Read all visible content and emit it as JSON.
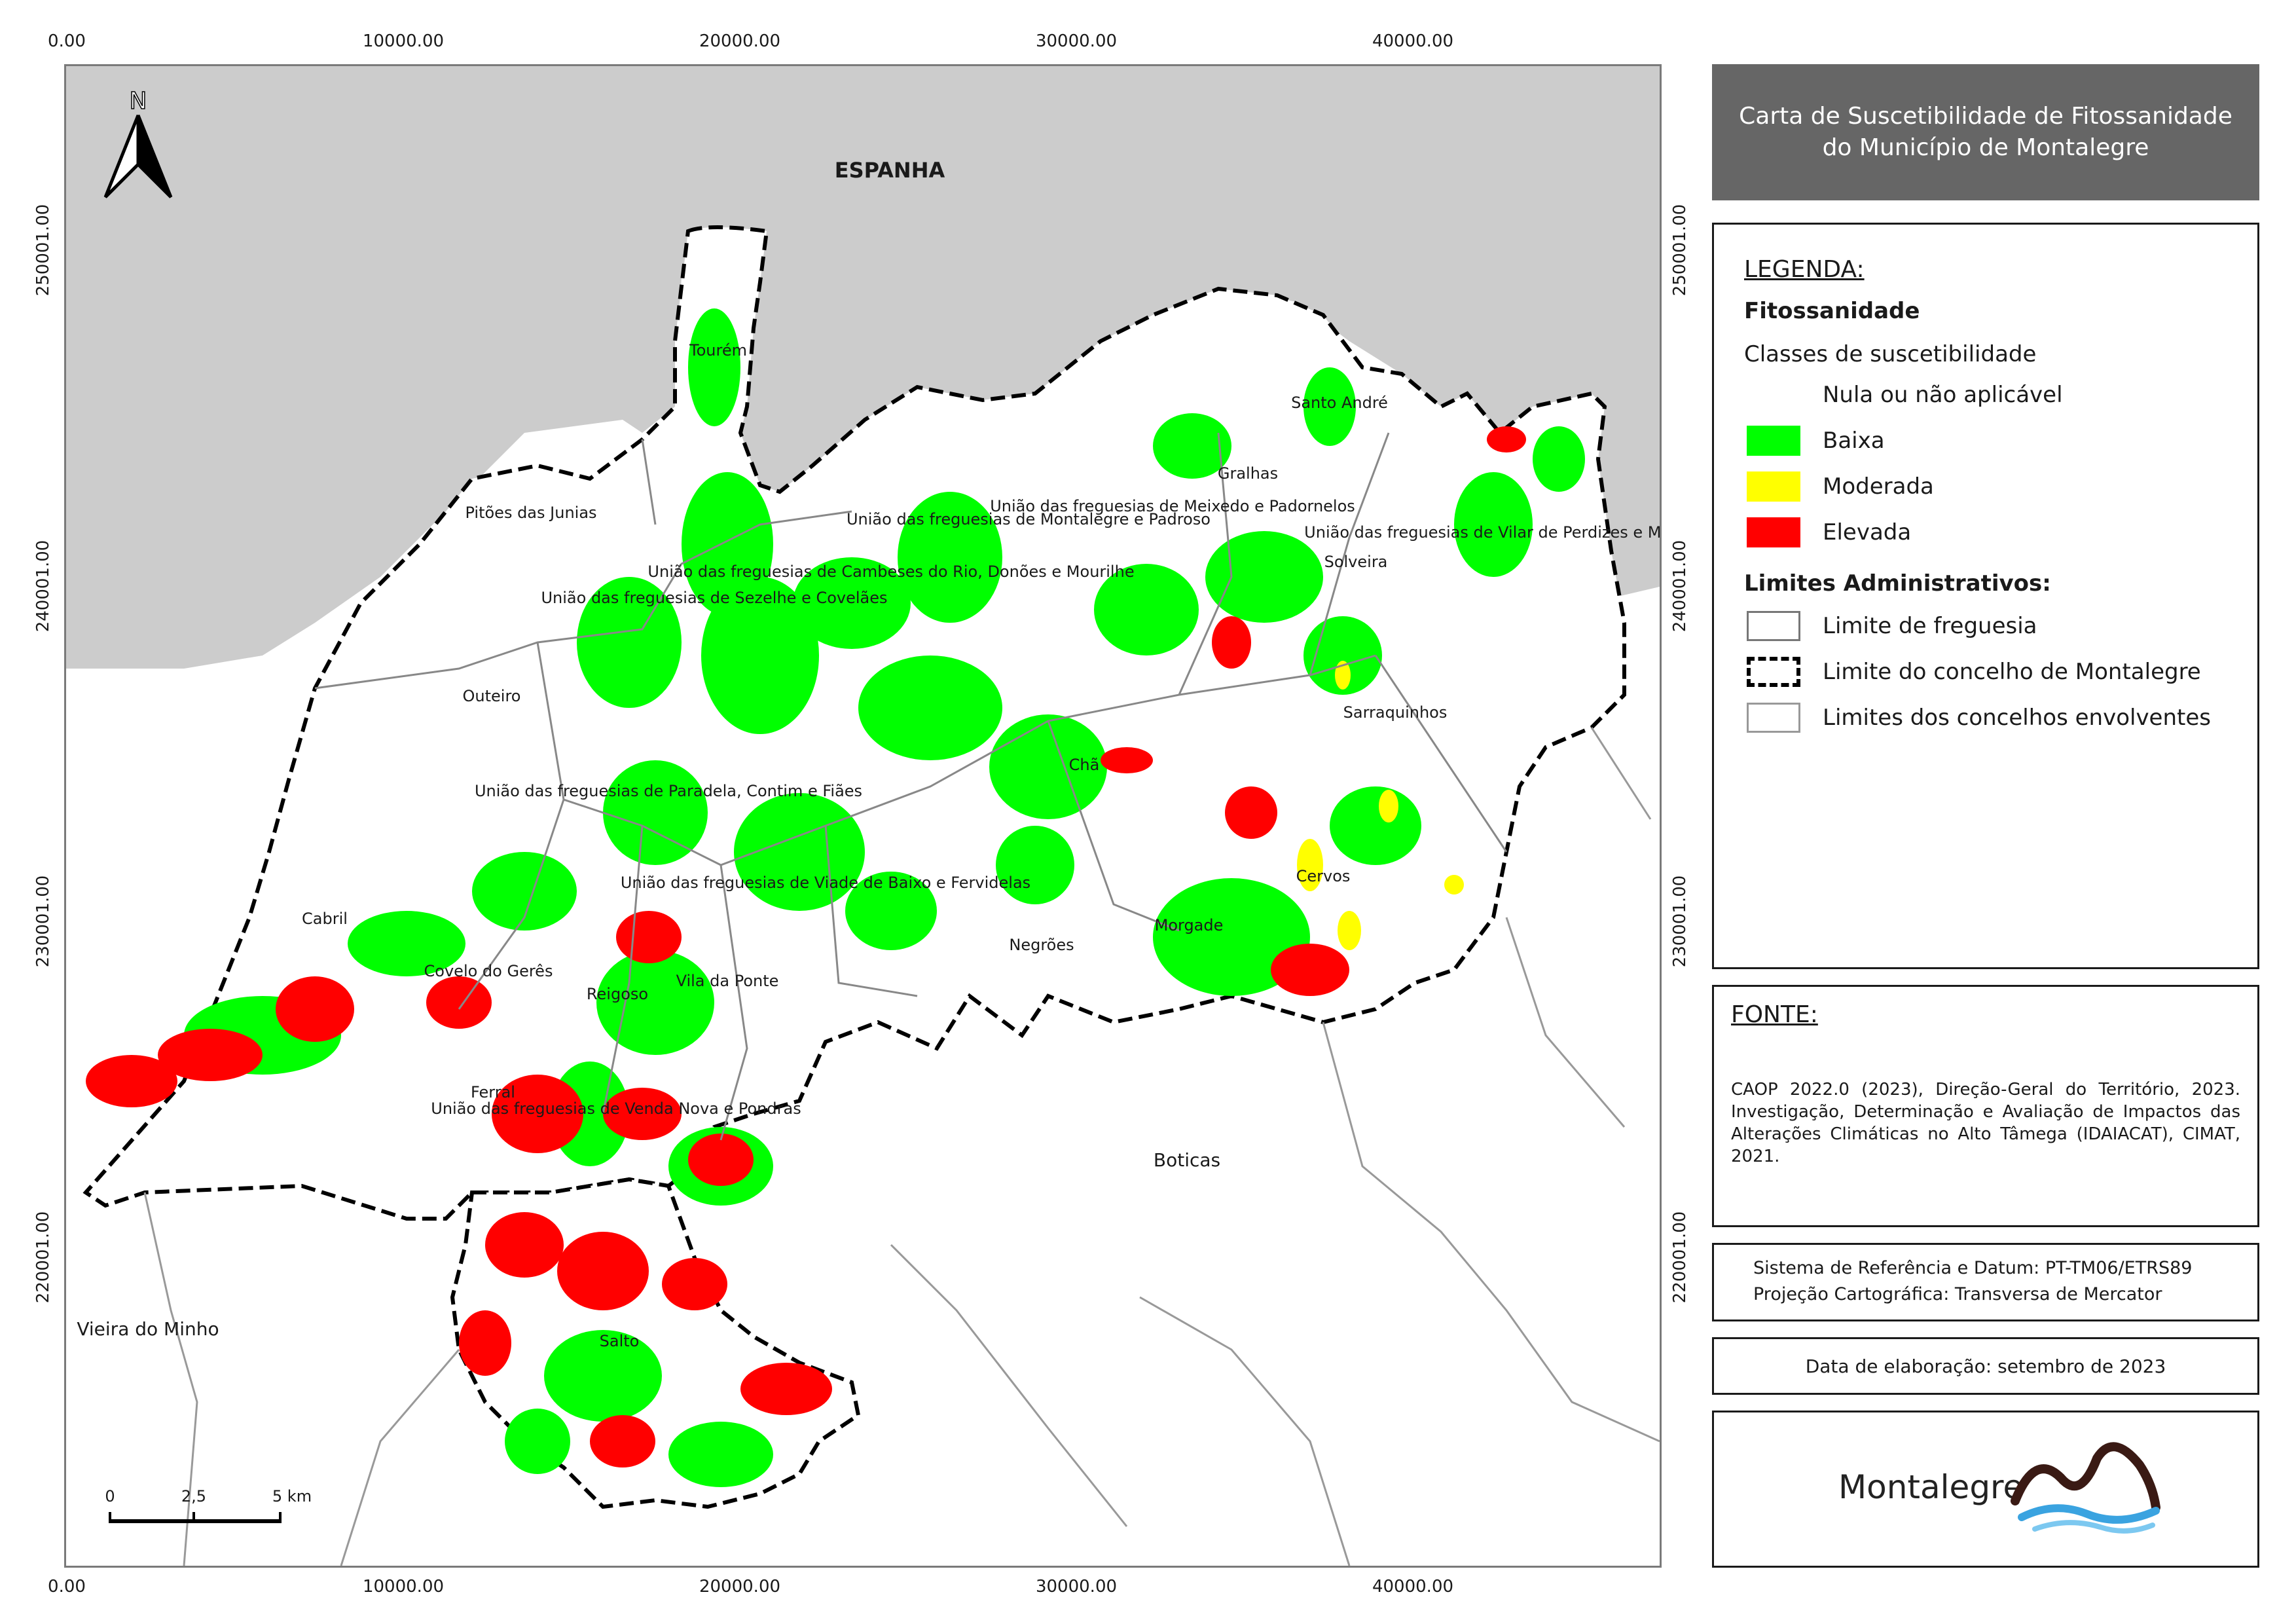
{
  "title": "Carta de Suscetibilidade de Fitossanidade do Município de Montalegre",
  "x_ticks": [
    "0.00",
    "10000.00",
    "20000.00",
    "30000.00",
    "40000.00"
  ],
  "y_ticks": [
    "250001.00",
    "240001.00",
    "230001.00",
    "220001.00"
  ],
  "map": {
    "country_label": "ESPANHA",
    "north_label": "N",
    "parishes": [
      "Tourém",
      "Pitões das Junias",
      "União das freguesias de Sezelhe e Covelães",
      "Outeiro",
      "União das freguesias de Paradela, Contim e Fiães",
      "Cabril",
      "Covelo do Gerês",
      "Reigoso",
      "Vila da Ponte",
      "Ferral",
      "União das freguesias de Venda Nova e Pondras",
      "Salto",
      "União das freguesias de Cambeses do Rio, Donões e Mourilhe",
      "União das freguesias de Montalegre e Padroso",
      "União das freguesias de Meixedo e Padornelos",
      "Gralhas",
      "Santo André",
      "Solveira",
      "União das freguesias de Vilar de Perdizes e Meixide",
      "Sarraquinhos",
      "Chã",
      "Cervos",
      "Morgade",
      "Negrões",
      "União das freguesias de Viade de Baixo e Fervidelas"
    ],
    "neighbors": [
      "Boticas",
      "Vieira do Minho"
    ],
    "scale_bar": {
      "labels": [
        "0",
        "2,5",
        "5 km"
      ]
    }
  },
  "legend": {
    "heading": "LEGENDA:",
    "section1": "Fitossanidade",
    "subtitle": "Classes de suscetibilidade",
    "classes": [
      {
        "label": "Nula ou não aplicável",
        "color": "#ffffff"
      },
      {
        "label": "Baixa",
        "color": "#00ff00"
      },
      {
        "label": "Moderada",
        "color": "#ffff00"
      },
      {
        "label": "Elevada",
        "color": "#ff0000"
      }
    ],
    "section2": "Limites Administrativos:",
    "limits": [
      "Limite de freguesia",
      "Limite do concelho de Montalegre",
      "Limites dos concelhos envolventes"
    ]
  },
  "source": {
    "heading": "FONTE:",
    "text": "CAOP 2022.0 (2023), Direção-Geral do Território, 2023. Investigação, Determinação e Avaliação de Impactos das Alterações Climáticas no Alto Tâmega (IDAIACAT), CIMAT, 2021."
  },
  "crs": {
    "line1": "Sistema de Referência e Datum: PT-TM06/ETRS89",
    "line2": "Projeção Cartográfica: Transversa de Mercator"
  },
  "date": "Data de elaboração: setembro de 2023",
  "logo_text": "Montalegre",
  "colors": {
    "spain": "#cccccc",
    "low": "#00ff00",
    "moderate": "#ffff00",
    "high": "#ff0000",
    "header": "#666666"
  }
}
